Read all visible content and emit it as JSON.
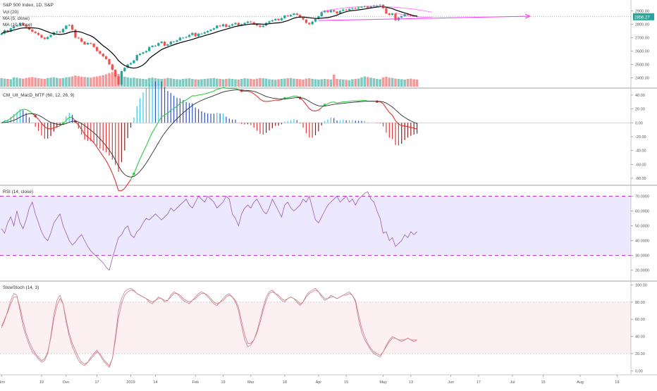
{
  "header": {
    "title": "S&P 500 Index, 1D, S&P",
    "indicators": [
      "Vol (20)",
      "MA (5, close)",
      "MA (10, close)"
    ]
  },
  "panes": {
    "macd_label": "CM_Ult_MacD_MTF (60, 12, 26, 9)",
    "rsi_label": "RSI (14, close)",
    "stoch_label": "SlowStoch (14, 3)"
  },
  "price_badge": "2856.27",
  "colors": {
    "up": "#26a69a",
    "down": "#ef5350",
    "vol_up": "#7fc9c1",
    "vol_down": "#f29a9a",
    "ma_fast": "#000000",
    "trend": "#ff33ff",
    "macd_up": "#2ecc40",
    "macd_down": "#e03030",
    "signal": "#303030",
    "rsi": "#9b59b6",
    "rsi_band": "#ece9ff",
    "rsi_level": "#cc33cc",
    "stoch_k": "#c080a0",
    "stoch_d": "#d27a7a",
    "stoch_band": "#fdf0f2",
    "badge": "#26a69a"
  },
  "x_axis": {
    "labels": [
      {
        "t": "Nov",
        "i": 0
      },
      {
        "t": "19",
        "i": 13
      },
      {
        "t": "Dec",
        "i": 21
      },
      {
        "t": "17",
        "i": 31
      },
      {
        "t": "2019",
        "i": 42
      },
      {
        "t": "14",
        "i": 50
      },
      {
        "t": "Feb",
        "i": 63
      },
      {
        "t": "19",
        "i": 72
      },
      {
        "t": "Mar",
        "i": 81
      },
      {
        "t": "18",
        "i": 92
      },
      {
        "t": "Apr",
        "i": 103
      },
      {
        "t": "15",
        "i": 112
      },
      {
        "t": "May",
        "i": 124
      },
      {
        "t": "13",
        "i": 133
      },
      {
        "t": "Jun",
        "i": 146
      },
      {
        "t": "17",
        "i": 155
      },
      {
        "t": "Jul",
        "i": 166
      },
      {
        "t": "15",
        "i": 176
      },
      {
        "t": "Aug",
        "i": 188
      },
      {
        "t": "19",
        "i": 200
      }
    ]
  },
  "chart_data": [
    {
      "type": "candlestick",
      "title": "S&P 500 Index, 1D, S&P",
      "y_ticks": [
        2400,
        2500,
        2600,
        2700,
        2800,
        2900
      ],
      "ylim": [
        2350,
        2960
      ],
      "close": [
        2730,
        2755,
        2745,
        2770,
        2785,
        2790,
        2810,
        2795,
        2780,
        2760,
        2745,
        2735,
        2720,
        2700,
        2690,
        2705,
        2720,
        2740,
        2745,
        2740,
        2765,
        2790,
        2795,
        2760,
        2700,
        2695,
        2670,
        2650,
        2660,
        2655,
        2630,
        2600,
        2580,
        2560,
        2540,
        2500,
        2460,
        2410,
        2350,
        2450,
        2475,
        2500,
        2510,
        2530,
        2570,
        2580,
        2590,
        2600,
        2630,
        2640,
        2640,
        2660,
        2670,
        2640,
        2650,
        2670,
        2670,
        2680,
        2700,
        2700,
        2705,
        2720,
        2735,
        2710,
        2730,
        2730,
        2740,
        2750,
        2760,
        2770,
        2790,
        2785,
        2800,
        2780,
        2790,
        2800,
        2810,
        2790,
        2800,
        2810,
        2820,
        2815,
        2800,
        2790,
        2780,
        2790,
        2810,
        2822,
        2830,
        2840,
        2830,
        2845,
        2865,
        2860,
        2870,
        2880,
        2870,
        2850,
        2835,
        2810,
        2800,
        2820,
        2840,
        2860,
        2890,
        2900,
        2890,
        2905,
        2895,
        2880,
        2900,
        2910,
        2905,
        2915,
        2920,
        2918,
        2925,
        2930,
        2935,
        2925,
        2935,
        2940,
        2940,
        2945,
        2920,
        2880,
        2870,
        2880,
        2830,
        2850,
        2860,
        2875,
        2870,
        2865,
        2860,
        2856
      ],
      "volume": [
        55,
        52,
        50,
        48,
        60,
        58,
        54,
        52,
        56,
        60,
        62,
        58,
        55,
        52,
        50,
        56,
        58,
        60,
        57,
        54,
        56,
        60,
        62,
        66,
        72,
        68,
        64,
        62,
        60,
        58,
        62,
        66,
        70,
        74,
        80,
        88,
        94,
        100,
        82,
        70,
        64,
        60,
        56,
        58,
        54,
        52,
        50,
        48,
        56,
        58,
        54,
        52,
        50,
        52,
        56,
        54,
        50,
        48,
        46,
        50,
        52,
        54,
        50,
        48,
        46,
        48,
        50,
        52,
        54,
        56,
        52,
        50,
        48,
        50,
        52,
        50,
        48,
        46,
        50,
        54,
        52,
        50,
        48,
        52,
        56,
        54,
        52,
        48,
        46,
        44,
        48,
        50,
        52,
        54,
        56,
        52,
        50,
        48,
        46,
        52,
        54,
        50,
        48,
        46,
        48,
        50,
        48,
        46,
        78,
        50,
        48,
        46,
        44,
        42,
        48,
        50,
        52,
        60,
        66,
        62,
        58,
        54,
        50,
        48,
        60,
        64,
        58,
        56,
        52,
        50,
        48,
        46,
        50,
        52,
        48,
        46
      ]
    },
    {
      "type": "macd",
      "title": "CM_Ult_MacD_MTF (60, 12, 26, 9)",
      "y_ticks": [
        40,
        20,
        0,
        -20,
        -40,
        -60,
        -80
      ],
      "ylim": [
        -85,
        45
      ]
    },
    {
      "type": "line",
      "title": "RSI (14, close)",
      "y_ticks": [
        70,
        60,
        50,
        40,
        30,
        20
      ],
      "ylim": [
        15,
        75
      ],
      "levels": [
        70,
        30
      ],
      "values": [
        48,
        45,
        52,
        56,
        50,
        60,
        52,
        48,
        54,
        62,
        66,
        58,
        52,
        46,
        42,
        40,
        45,
        52,
        55,
        58,
        50,
        45,
        40,
        37,
        39,
        42,
        44,
        40,
        36,
        33,
        31,
        29,
        27,
        25,
        22,
        20,
        28,
        35,
        42,
        44,
        48,
        50,
        44,
        42,
        46,
        48,
        52,
        55,
        54,
        56,
        58,
        56,
        54,
        56,
        58,
        62,
        60,
        62,
        64,
        66,
        68,
        64,
        62,
        66,
        70,
        68,
        66,
        70,
        68,
        66,
        62,
        64,
        66,
        70,
        68,
        58,
        55,
        50,
        58,
        62,
        64,
        62,
        66,
        68,
        64,
        60,
        58,
        62,
        68,
        64,
        60,
        56,
        64,
        66,
        62,
        60,
        62,
        64,
        68,
        66,
        70,
        62,
        54,
        52,
        56,
        60,
        64,
        66,
        68,
        70,
        66,
        68,
        70,
        66,
        68,
        64,
        68,
        70,
        72,
        73,
        68,
        66,
        60,
        55,
        45,
        46,
        40,
        42,
        36,
        38,
        40,
        44,
        42,
        46,
        44,
        46
      ]
    },
    {
      "type": "line",
      "title": "SlowStoch (14, 3)",
      "y_ticks": [
        100,
        80,
        60,
        40,
        20,
        0
      ],
      "ylim": [
        -3,
        102
      ],
      "levels": [
        80,
        20
      ],
      "series": [
        {
          "values": [
            50,
            58,
            70,
            82,
            90,
            88,
            70,
            52,
            40,
            30,
            22,
            18,
            14,
            10,
            12,
            20,
            40,
            66,
            82,
            88,
            78,
            56,
            40,
            28,
            20,
            12,
            8,
            6,
            10,
            16,
            20,
            24,
            18,
            12,
            8,
            4,
            14,
            40,
            70,
            84,
            92,
            95,
            96,
            94,
            90,
            88,
            86,
            84,
            80,
            78,
            82,
            86,
            84,
            80,
            82,
            88,
            92,
            90,
            86,
            82,
            80,
            78,
            82,
            86,
            90,
            92,
            90,
            86,
            82,
            78,
            76,
            80,
            84,
            88,
            90,
            86,
            80,
            70,
            52,
            36,
            28,
            30,
            36,
            46,
            60,
            74,
            86,
            92,
            94,
            90,
            86,
            82,
            80,
            84,
            86,
            84,
            80,
            76,
            80,
            88,
            92,
            94,
            96,
            92,
            86,
            82,
            84,
            88,
            86,
            84,
            86,
            88,
            90,
            92,
            88,
            80,
            60,
            45,
            36,
            30,
            24,
            20,
            18,
            16,
            22,
            30,
            36,
            40,
            38,
            36,
            34,
            36,
            38,
            36,
            34,
            36
          ]
        },
        {
          "values": [
            52,
            60,
            68,
            78,
            86,
            86,
            74,
            58,
            44,
            34,
            26,
            20,
            16,
            12,
            14,
            22,
            38,
            60,
            76,
            84,
            78,
            60,
            44,
            32,
            24,
            16,
            10,
            8,
            10,
            14,
            18,
            22,
            20,
            14,
            10,
            6,
            14,
            36,
            62,
            78,
            88,
            92,
            94,
            93,
            90,
            88,
            86,
            84,
            82,
            80,
            82,
            84,
            84,
            82,
            82,
            86,
            90,
            90,
            88,
            84,
            82,
            80,
            82,
            84,
            88,
            90,
            90,
            88,
            84,
            80,
            78,
            80,
            82,
            86,
            88,
            86,
            82,
            74,
            58,
            42,
            32,
            32,
            36,
            44,
            56,
            70,
            82,
            90,
            92,
            90,
            88,
            84,
            82,
            84,
            86,
            84,
            82,
            78,
            80,
            86,
            90,
            92,
            94,
            92,
            88,
            84,
            84,
            86,
            86,
            84,
            86,
            88,
            88,
            90,
            88,
            82,
            66,
            50,
            40,
            32,
            26,
            22,
            20,
            18,
            22,
            28,
            34,
            38,
            38,
            36,
            36,
            36,
            38,
            36,
            36,
            36
          ]
        }
      ]
    }
  ]
}
